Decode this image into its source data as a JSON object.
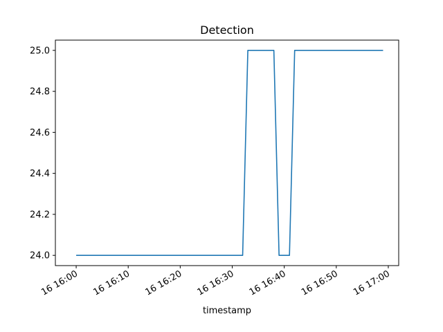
{
  "chart_data": {
    "type": "line",
    "title": "Detection",
    "xlabel": "timestamp",
    "ylabel": "",
    "x_units": "minutes after 16 16:00",
    "xlim": [
      -4,
      62
    ],
    "ylim": [
      23.95,
      25.05
    ],
    "x_ticks": [
      {
        "value": 0,
        "label": "16 16:00"
      },
      {
        "value": 10,
        "label": "16 16:10"
      },
      {
        "value": 20,
        "label": "16 16:20"
      },
      {
        "value": 30,
        "label": "16 16:30"
      },
      {
        "value": 40,
        "label": "16 16:40"
      },
      {
        "value": 50,
        "label": "16 16:50"
      },
      {
        "value": 60,
        "label": "16 17:00"
      }
    ],
    "y_ticks": [
      {
        "value": 24.0,
        "label": "24.0"
      },
      {
        "value": 24.2,
        "label": "24.2"
      },
      {
        "value": 24.4,
        "label": "24.4"
      },
      {
        "value": 24.6,
        "label": "24.6"
      },
      {
        "value": 24.8,
        "label": "24.8"
      },
      {
        "value": 25.0,
        "label": "25.0"
      }
    ],
    "grid": false,
    "series": [
      {
        "color": "#1f77b4",
        "x": [
          0,
          32,
          33,
          38,
          39,
          41,
          42,
          59
        ],
        "y": [
          24.0,
          24.0,
          25.0,
          25.0,
          24.0,
          24.0,
          25.0,
          25.0
        ]
      }
    ]
  }
}
